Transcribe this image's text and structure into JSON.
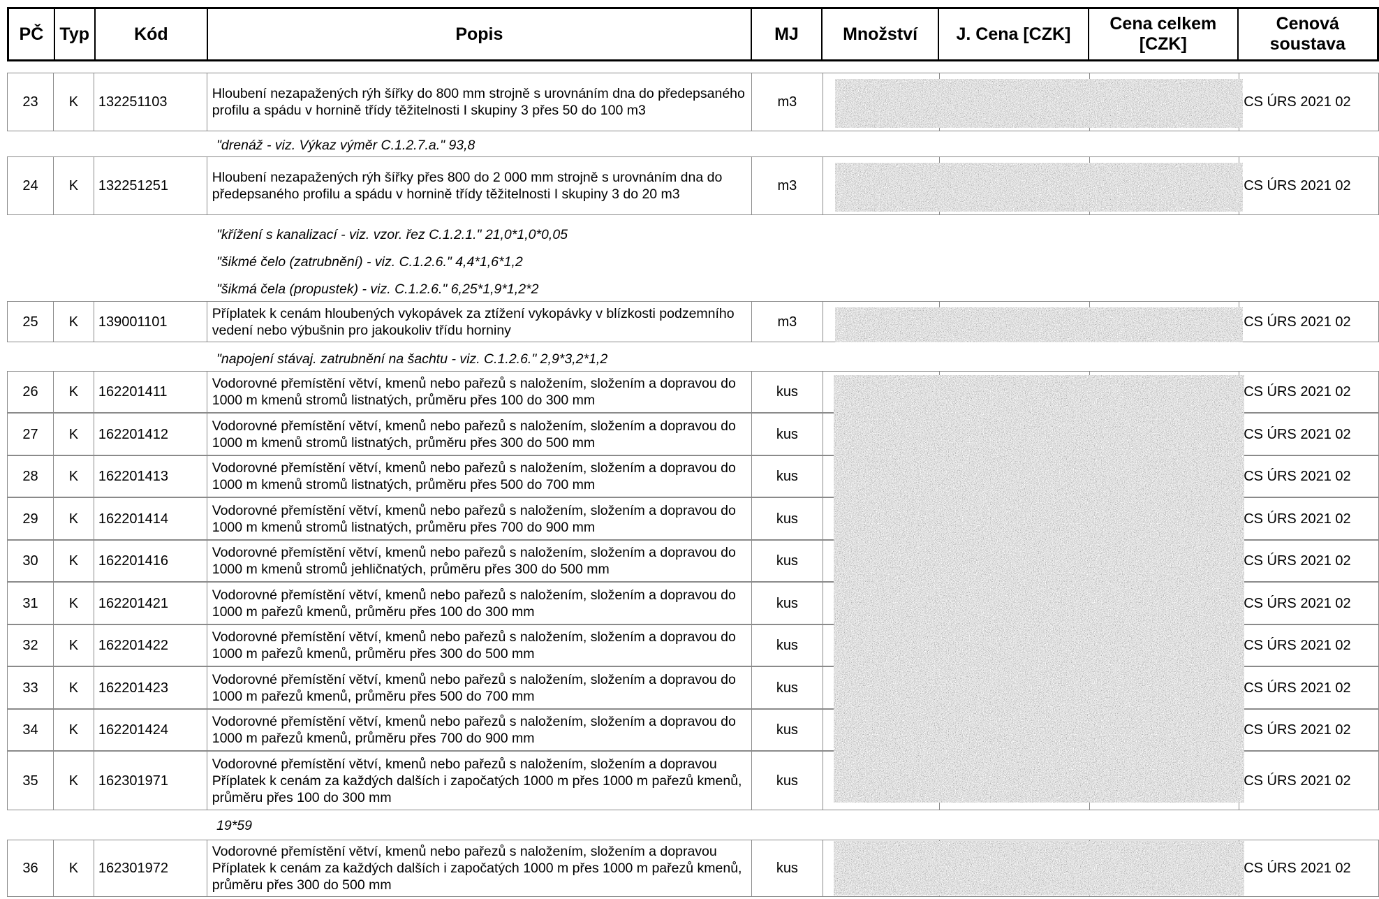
{
  "header": {
    "pc": "PČ",
    "typ": "Typ",
    "kod": "Kód",
    "popis": "Popis",
    "mj": "MJ",
    "mnozstvi": "Množství",
    "j_cena": "J. Cena [CZK]",
    "cena_celkem": "Cena celkem [CZK]",
    "cenova_soustava": "Cenová soustava"
  },
  "rows": [
    {
      "pc": "23",
      "typ": "K",
      "kod": "132251103",
      "popis": "Hloubení nezapažených rýh šířky do 800 mm strojně s urovnáním dna do předepsaného profilu a spádu v hornině třídy těžitelnosti I skupiny 3 přes 50 do 100 m3",
      "mj": "m3",
      "soustava": "CS ÚRS 2021 02"
    },
    {
      "pc": "24",
      "typ": "K",
      "kod": "132251251",
      "popis": "Hloubení nezapažených rýh šířky přes 800 do 2 000 mm strojně s urovnáním dna do předepsaného profilu a spádu v hornině třídy těžitelnosti I skupiny 3 do 20 m3",
      "mj": "m3",
      "soustava": "CS ÚRS 2021 02"
    },
    {
      "pc": "25",
      "typ": "K",
      "kod": "139001101",
      "popis": "Příplatek k cenám hloubených vykopávek za ztížení vykopávky v blízkosti podzemního vedení nebo výbušnin pro jakoukoliv třídu horniny",
      "mj": "m3",
      "soustava": "CS ÚRS 2021 02"
    },
    {
      "pc": "26",
      "typ": "K",
      "kod": "162201411",
      "popis": "Vodorovné přemístění větví, kmenů nebo pařezů s naložením, složením a dopravou do 1000 m kmenů stromů listnatých, průměru přes 100 do 300 mm",
      "mj": "kus",
      "soustava": "CS ÚRS 2021 02"
    },
    {
      "pc": "27",
      "typ": "K",
      "kod": "162201412",
      "popis": "Vodorovné přemístění větví, kmenů nebo pařezů s naložením, složením a dopravou do 1000 m kmenů stromů listnatých, průměru přes 300 do 500 mm",
      "mj": "kus",
      "soustava": "CS ÚRS 2021 02"
    },
    {
      "pc": "28",
      "typ": "K",
      "kod": "162201413",
      "popis": "Vodorovné přemístění větví, kmenů nebo pařezů s naložením, složením a dopravou do 1000 m kmenů stromů listnatých, průměru přes 500 do 700 mm",
      "mj": "kus",
      "soustava": "CS ÚRS 2021 02"
    },
    {
      "pc": "29",
      "typ": "K",
      "kod": "162201414",
      "popis": "Vodorovné přemístění větví, kmenů nebo pařezů s naložením, složením a dopravou do 1000 m kmenů stromů listnatých, průměru přes 700 do 900 mm",
      "mj": "kus",
      "soustava": "CS ÚRS 2021 02"
    },
    {
      "pc": "30",
      "typ": "K",
      "kod": "162201416",
      "popis": "Vodorovné přemístění větví, kmenů nebo pařezů s naložením, složením a dopravou do 1000 m kmenů stromů jehličnatých, průměru přes 300 do 500 mm",
      "mj": "kus",
      "soustava": "CS ÚRS 2021 02"
    },
    {
      "pc": "31",
      "typ": "K",
      "kod": "162201421",
      "popis": "Vodorovné přemístění větví, kmenů nebo pařezů s naložením, složením a dopravou do 1000 m pařezů kmenů, průměru přes 100 do 300 mm",
      "mj": "kus",
      "soustava": "CS ÚRS 2021 02"
    },
    {
      "pc": "32",
      "typ": "K",
      "kod": "162201422",
      "popis": "Vodorovné přemístění větví, kmenů nebo pařezů s naložením, složením a dopravou do 1000 m pařezů kmenů, průměru přes 300 do 500 mm",
      "mj": "kus",
      "soustava": "CS ÚRS 2021 02"
    },
    {
      "pc": "33",
      "typ": "K",
      "kod": "162201423",
      "popis": "Vodorovné přemístění větví, kmenů nebo pařezů s naložením, složením a dopravou do 1000 m pařezů kmenů, průměru přes 500 do 700 mm",
      "mj": "kus",
      "soustava": "CS ÚRS 2021 02"
    },
    {
      "pc": "34",
      "typ": "K",
      "kod": "162201424",
      "popis": "Vodorovné přemístění větví, kmenů nebo pařezů s naložením, složením a dopravou do 1000 m pařezů kmenů, průměru přes 700 do 900 mm",
      "mj": "kus",
      "soustava": "CS ÚRS 2021 02"
    },
    {
      "pc": "35",
      "typ": "K",
      "kod": "162301971",
      "popis": "Vodorovné přemístění větví, kmenů nebo pařezů s naložením, složením a dopravou Příplatek k cenám za každých dalších i započatých 1000 m přes 1000 m pařezů kmenů, průměru přes 100 do 300 mm",
      "mj": "kus",
      "soustava": "CS ÚRS 2021 02"
    },
    {
      "pc": "36",
      "typ": "K",
      "kod": "162301972",
      "popis": "Vodorovné přemístění větví, kmenů nebo pařezů s naložením, složením a dopravou Příplatek k cenám za každých dalších i započatých 1000 m přes 1000 m pařezů kmenů, průměru přes 300 do 500 mm",
      "mj": "kus",
      "soustava": "CS ÚRS 2021 02"
    }
  ],
  "notes": [
    "\"drenáž - viz. Výkaz výměr C.1.2.7.a.\" 93,8",
    "\"křížení s kanalizací - viz. vzor. řez C.1.2.1.\" 21,0*1,0*0,05",
    "\"šikmé čelo (zatrubnění) - viz. C.1.2.6.\" 4,4*1,6*1,2",
    "\"šikmá čela (propustek) - viz. C.1.2.6.\" 6,25*1,9*1,2*2",
    "\"napojení stávaj. zatrubnění na šachtu - viz. C.1.2.6.\" 2,9*3,2*1,2",
    "19*59"
  ]
}
